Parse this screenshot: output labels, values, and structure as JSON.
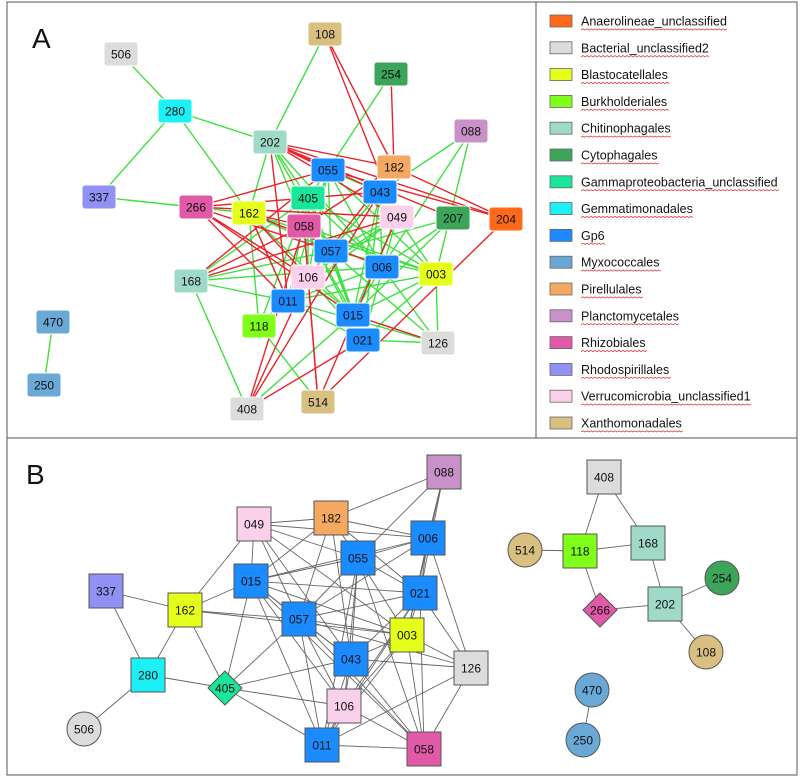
{
  "panel_a": {
    "label": "A",
    "legend": [
      {
        "text": "Anaerolineae_unclassified",
        "color": "#ff6a1a"
      },
      {
        "text": "Bacterial_unclassified2",
        "color": "#dcdcdc"
      },
      {
        "text": "Blastocatellales",
        "color": "#e6ff1a"
      },
      {
        "text": "Burkholderiales",
        "color": "#80ff1a"
      },
      {
        "text": "Chitinophagales",
        "color": "#9fd9c8"
      },
      {
        "text": "Cytophagales",
        "color": "#3da55a"
      },
      {
        "text": "Gammaproteobacteria_unclassified",
        "color": "#1ae69b"
      },
      {
        "text": "Gemmatimonadales",
        "color": "#1af0f5"
      },
      {
        "text": "Gp6",
        "color": "#1a8cff"
      },
      {
        "text": "Myxococcales",
        "color": "#6aa8d6"
      },
      {
        "text": "Pirellulales",
        "color": "#f5a860"
      },
      {
        "text": "Planctomycetales",
        "color": "#c891c8"
      },
      {
        "text": "Rhizobiales",
        "color": "#e05aa8"
      },
      {
        "text": "Rhodospirillales",
        "color": "#9090f5"
      },
      {
        "text": "Verrucomicrobia_unclassified1",
        "color": "#fbd0ea"
      },
      {
        "text": "Xanthomonadales",
        "color": "#d9bf80"
      }
    ],
    "nodes": [
      {
        "id": "506",
        "group": "Bacterial_unclassified2"
      },
      {
        "id": "108",
        "group": "Xanthomonadales"
      },
      {
        "id": "254",
        "group": "Cytophagales"
      },
      {
        "id": "280",
        "group": "Gemmatimonadales"
      },
      {
        "id": "088",
        "group": "Planctomycetales"
      },
      {
        "id": "202",
        "group": "Chitinophagales"
      },
      {
        "id": "055",
        "group": "Gp6"
      },
      {
        "id": "182",
        "group": "Pirellulales"
      },
      {
        "id": "337",
        "group": "Rhodospirillales"
      },
      {
        "id": "043",
        "group": "Gp6"
      },
      {
        "id": "266",
        "group": "Rhizobiales"
      },
      {
        "id": "405",
        "group": "Gammaproteobacteria_unclassified"
      },
      {
        "id": "162",
        "group": "Blastocatellales"
      },
      {
        "id": "049",
        "group": "Verrucomicrobia_unclassified1"
      },
      {
        "id": "207",
        "group": "Cytophagales"
      },
      {
        "id": "204",
        "group": "Anaerolineae_unclassified"
      },
      {
        "id": "058",
        "group": "Rhizobiales"
      },
      {
        "id": "057",
        "group": "Gp6"
      },
      {
        "id": "006",
        "group": "Gp6"
      },
      {
        "id": "003",
        "group": "Blastocatellales"
      },
      {
        "id": "168",
        "group": "Chitinophagales"
      },
      {
        "id": "106",
        "group": "Verrucomicrobia_unclassified1"
      },
      {
        "id": "011",
        "group": "Gp6"
      },
      {
        "id": "015",
        "group": "Gp6"
      },
      {
        "id": "118",
        "group": "Burkholderiales"
      },
      {
        "id": "021",
        "group": "Gp6"
      },
      {
        "id": "126",
        "group": "Bacterial_unclassified2"
      },
      {
        "id": "470",
        "group": "Myxococcales"
      },
      {
        "id": "250",
        "group": "Myxococcales"
      },
      {
        "id": "514",
        "group": "Xanthomonadales"
      },
      {
        "id": "408",
        "group": "Bacterial_unclassified2"
      }
    ]
  },
  "panel_b": {
    "label": "B",
    "nodes": [
      {
        "id": "088",
        "group": "Planctomycetales",
        "shape": "square"
      },
      {
        "id": "182",
        "group": "Pirellulales",
        "shape": "square"
      },
      {
        "id": "049",
        "group": "Verrucomicrobia_unclassified1",
        "shape": "square"
      },
      {
        "id": "006",
        "group": "Gp6",
        "shape": "square"
      },
      {
        "id": "055",
        "group": "Gp6",
        "shape": "square"
      },
      {
        "id": "015",
        "group": "Gp6",
        "shape": "square"
      },
      {
        "id": "021",
        "group": "Gp6",
        "shape": "square"
      },
      {
        "id": "337",
        "group": "Rhodospirillales",
        "shape": "square"
      },
      {
        "id": "162",
        "group": "Blastocatellales",
        "shape": "square"
      },
      {
        "id": "057",
        "group": "Gp6",
        "shape": "square"
      },
      {
        "id": "003",
        "group": "Blastocatellales",
        "shape": "square"
      },
      {
        "id": "043",
        "group": "Gp6",
        "shape": "square"
      },
      {
        "id": "280",
        "group": "Gemmatimonadales",
        "shape": "square"
      },
      {
        "id": "405",
        "group": "Gammaproteobacteria_unclassified",
        "shape": "diamond"
      },
      {
        "id": "126",
        "group": "Bacterial_unclassified2",
        "shape": "square"
      },
      {
        "id": "106",
        "group": "Verrucomicrobia_unclassified1",
        "shape": "square"
      },
      {
        "id": "506",
        "group": "Bacterial_unclassified2",
        "shape": "circle"
      },
      {
        "id": "011",
        "group": "Gp6",
        "shape": "square"
      },
      {
        "id": "058",
        "group": "Rhizobiales",
        "shape": "square"
      },
      {
        "id": "408",
        "group": "Bacterial_unclassified2",
        "shape": "square"
      },
      {
        "id": "514",
        "group": "Xanthomonadales",
        "shape": "circle"
      },
      {
        "id": "118",
        "group": "Burkholderiales",
        "shape": "square"
      },
      {
        "id": "168",
        "group": "Chitinophagales",
        "shape": "square"
      },
      {
        "id": "254",
        "group": "Cytophagales",
        "shape": "circle"
      },
      {
        "id": "266",
        "group": "Rhizobiales",
        "shape": "diamond"
      },
      {
        "id": "202",
        "group": "Chitinophagales",
        "shape": "square"
      },
      {
        "id": "108",
        "group": "Xanthomonadales",
        "shape": "circle"
      },
      {
        "id": "470",
        "group": "Myxococcales",
        "shape": "circle"
      },
      {
        "id": "250",
        "group": "Myxococcales",
        "shape": "circle"
      }
    ]
  }
}
